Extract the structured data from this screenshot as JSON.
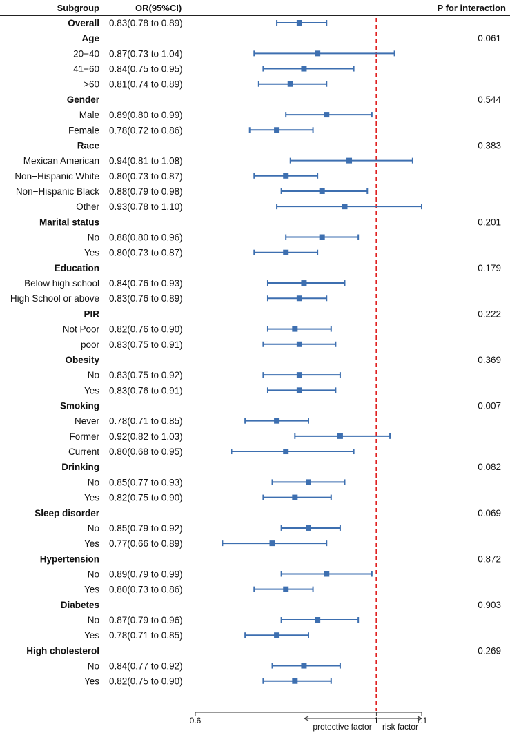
{
  "chart_data": {
    "type": "forest",
    "headers": {
      "subgroup": "Subgroup",
      "or": "OR(95%CI)",
      "p": "P for interaction"
    },
    "x_axis": {
      "min": 0.6,
      "max": 1.1,
      "ticks": [
        "0.6",
        "1",
        "1.1"
      ],
      "tick_values": [
        0.6,
        1.0,
        1.1
      ]
    },
    "reference_line": 1.0,
    "colors": {
      "estimate": "#3d6fb0",
      "reference": "#e02020",
      "axis": "#333333"
    },
    "annotation": {
      "left": "protective factor",
      "right": "risk factor"
    },
    "rows": [
      {
        "type": "sub",
        "bold": true,
        "label": "Overall",
        "or_text": "0.83(0.78 to 0.89)",
        "or": 0.83,
        "lo": 0.78,
        "hi": 0.89
      },
      {
        "type": "group",
        "label": "Age",
        "p": "0.061"
      },
      {
        "type": "sub",
        "label": "20−40",
        "or_text": "0.87(0.73 to 1.04)",
        "or": 0.87,
        "lo": 0.73,
        "hi": 1.04
      },
      {
        "type": "sub",
        "label": "41−60",
        "or_text": "0.84(0.75 to 0.95)",
        "or": 0.84,
        "lo": 0.75,
        "hi": 0.95
      },
      {
        "type": "sub",
        "label": ">60",
        "or_text": "0.81(0.74 to 0.89)",
        "or": 0.81,
        "lo": 0.74,
        "hi": 0.89
      },
      {
        "type": "group",
        "label": "Gender",
        "p": "0.544"
      },
      {
        "type": "sub",
        "label": "Male",
        "or_text": "0.89(0.80 to 0.99)",
        "or": 0.89,
        "lo": 0.8,
        "hi": 0.99
      },
      {
        "type": "sub",
        "label": "Female",
        "or_text": "0.78(0.72 to 0.86)",
        "or": 0.78,
        "lo": 0.72,
        "hi": 0.86
      },
      {
        "type": "group",
        "label": "Race",
        "p": "0.383"
      },
      {
        "type": "sub",
        "label": "Mexican American",
        "or_text": "0.94(0.81 to 1.08)",
        "or": 0.94,
        "lo": 0.81,
        "hi": 1.08
      },
      {
        "type": "sub",
        "label": "Non−Hispanic White",
        "or_text": "0.80(0.73 to 0.87)",
        "or": 0.8,
        "lo": 0.73,
        "hi": 0.87
      },
      {
        "type": "sub",
        "label": "Non−Hispanic Black",
        "or_text": "0.88(0.79 to 0.98)",
        "or": 0.88,
        "lo": 0.79,
        "hi": 0.98
      },
      {
        "type": "sub",
        "label": "Other",
        "or_text": "0.93(0.78 to 1.10)",
        "or": 0.93,
        "lo": 0.78,
        "hi": 1.1
      },
      {
        "type": "group",
        "label": "Marital status",
        "p": "0.201"
      },
      {
        "type": "sub",
        "label": "No",
        "or_text": "0.88(0.80 to 0.96)",
        "or": 0.88,
        "lo": 0.8,
        "hi": 0.96
      },
      {
        "type": "sub",
        "label": "Yes",
        "or_text": "0.80(0.73 to 0.87)",
        "or": 0.8,
        "lo": 0.73,
        "hi": 0.87
      },
      {
        "type": "group",
        "label": "Education",
        "p": "0.179"
      },
      {
        "type": "sub",
        "label": "Below high school",
        "or_text": "0.84(0.76 to 0.93)",
        "or": 0.84,
        "lo": 0.76,
        "hi": 0.93
      },
      {
        "type": "sub",
        "label": "High School or above",
        "or_text": "0.83(0.76 to 0.89)",
        "or": 0.83,
        "lo": 0.76,
        "hi": 0.89
      },
      {
        "type": "group",
        "label": "PIR",
        "p": "0.222"
      },
      {
        "type": "sub",
        "label": "Not Poor",
        "or_text": "0.82(0.76 to 0.90)",
        "or": 0.82,
        "lo": 0.76,
        "hi": 0.9
      },
      {
        "type": "sub",
        "label": "poor",
        "or_text": "0.83(0.75 to 0.91)",
        "or": 0.83,
        "lo": 0.75,
        "hi": 0.91
      },
      {
        "type": "group",
        "label": "Obesity",
        "p": "0.369"
      },
      {
        "type": "sub",
        "label": "No",
        "or_text": "0.83(0.75 to 0.92)",
        "or": 0.83,
        "lo": 0.75,
        "hi": 0.92
      },
      {
        "type": "sub",
        "label": "Yes",
        "or_text": "0.83(0.76 to 0.91)",
        "or": 0.83,
        "lo": 0.76,
        "hi": 0.91
      },
      {
        "type": "group",
        "label": "Smoking",
        "p": "0.007"
      },
      {
        "type": "sub",
        "label": "Never",
        "or_text": "0.78(0.71 to 0.85)",
        "or": 0.78,
        "lo": 0.71,
        "hi": 0.85
      },
      {
        "type": "sub",
        "label": "Former",
        "or_text": "0.92(0.82 to 1.03)",
        "or": 0.92,
        "lo": 0.82,
        "hi": 1.03
      },
      {
        "type": "sub",
        "label": "Current",
        "or_text": "0.80(0.68 to 0.95)",
        "or": 0.8,
        "lo": 0.68,
        "hi": 0.95
      },
      {
        "type": "group",
        "label": "Drinking",
        "p": "0.082"
      },
      {
        "type": "sub",
        "label": "No",
        "or_text": "0.85(0.77 to 0.93)",
        "or": 0.85,
        "lo": 0.77,
        "hi": 0.93
      },
      {
        "type": "sub",
        "label": "Yes",
        "or_text": "0.82(0.75 to 0.90)",
        "or": 0.82,
        "lo": 0.75,
        "hi": 0.9
      },
      {
        "type": "group",
        "label": "Sleep disorder",
        "p": "0.069"
      },
      {
        "type": "sub",
        "label": "No",
        "or_text": "0.85(0.79 to 0.92)",
        "or": 0.85,
        "lo": 0.79,
        "hi": 0.92
      },
      {
        "type": "sub",
        "label": "Yes",
        "or_text": "0.77(0.66 to 0.89)",
        "or": 0.77,
        "lo": 0.66,
        "hi": 0.89
      },
      {
        "type": "group",
        "label": "Hypertension",
        "p": "0.872"
      },
      {
        "type": "sub",
        "label": "No",
        "or_text": "0.89(0.79 to 0.99)",
        "or": 0.89,
        "lo": 0.79,
        "hi": 0.99
      },
      {
        "type": "sub",
        "label": "Yes",
        "or_text": "0.80(0.73 to 0.86)",
        "or": 0.8,
        "lo": 0.73,
        "hi": 0.86
      },
      {
        "type": "group",
        "label": "Diabetes",
        "p": "0.903"
      },
      {
        "type": "sub",
        "label": "No",
        "or_text": "0.87(0.79 to 0.96)",
        "or": 0.87,
        "lo": 0.79,
        "hi": 0.96
      },
      {
        "type": "sub",
        "label": "Yes",
        "or_text": "0.78(0.71 to 0.85)",
        "or": 0.78,
        "lo": 0.71,
        "hi": 0.85
      },
      {
        "type": "group",
        "label": "High cholesterol",
        "p": "0.269"
      },
      {
        "type": "sub",
        "label": "No",
        "or_text": "0.84(0.77 to 0.92)",
        "or": 0.84,
        "lo": 0.77,
        "hi": 0.92
      },
      {
        "type": "sub",
        "label": "Yes",
        "or_text": "0.82(0.75 to 0.90)",
        "or": 0.82,
        "lo": 0.75,
        "hi": 0.9
      }
    ]
  }
}
